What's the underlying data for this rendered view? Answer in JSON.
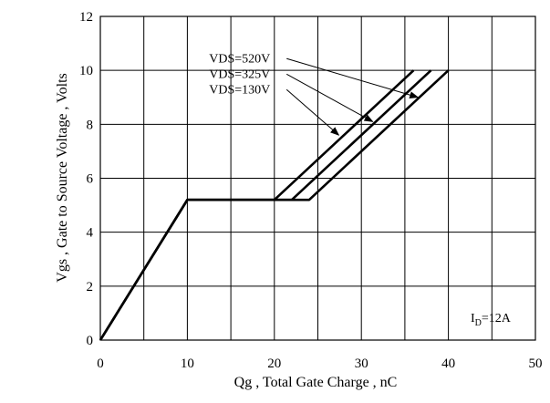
{
  "chart_data": {
    "type": "line",
    "xlabel": "Qg , Total Gate Charge , nC",
    "ylabel": "Vgs , Gate to Source Voltage , Volts",
    "xlim": [
      0,
      50
    ],
    "ylim": [
      0,
      12
    ],
    "x_ticks": [
      0,
      10,
      20,
      30,
      40,
      50
    ],
    "y_ticks": [
      0,
      2,
      4,
      6,
      8,
      10,
      12
    ],
    "grid": true,
    "annotation": {
      "main": "I",
      "sub": "D",
      "rest": "=12A"
    },
    "series": [
      {
        "name": "VDS=130V",
        "x": [
          0,
          10,
          20,
          36
        ],
        "y": [
          0,
          5.2,
          5.2,
          10
        ]
      },
      {
        "name": "VDS=325V",
        "x": [
          0,
          10,
          22,
          38
        ],
        "y": [
          0,
          5.2,
          5.2,
          10
        ]
      },
      {
        "name": "VDS=520V",
        "x": [
          0,
          10,
          24,
          40
        ],
        "y": [
          0,
          5.2,
          5.2,
          10
        ]
      }
    ],
    "series_labels": [
      {
        "text": "VDS=520V",
        "series": "VDS=520V",
        "arrow_to": [
          36.5,
          9.0
        ]
      },
      {
        "text": "VDS=325V",
        "series": "VDS=325V",
        "arrow_to": [
          31.3,
          8.1
        ]
      },
      {
        "text": "VDS=130V",
        "series": "VDS=130V",
        "arrow_to": [
          27.4,
          7.6
        ]
      }
    ]
  }
}
